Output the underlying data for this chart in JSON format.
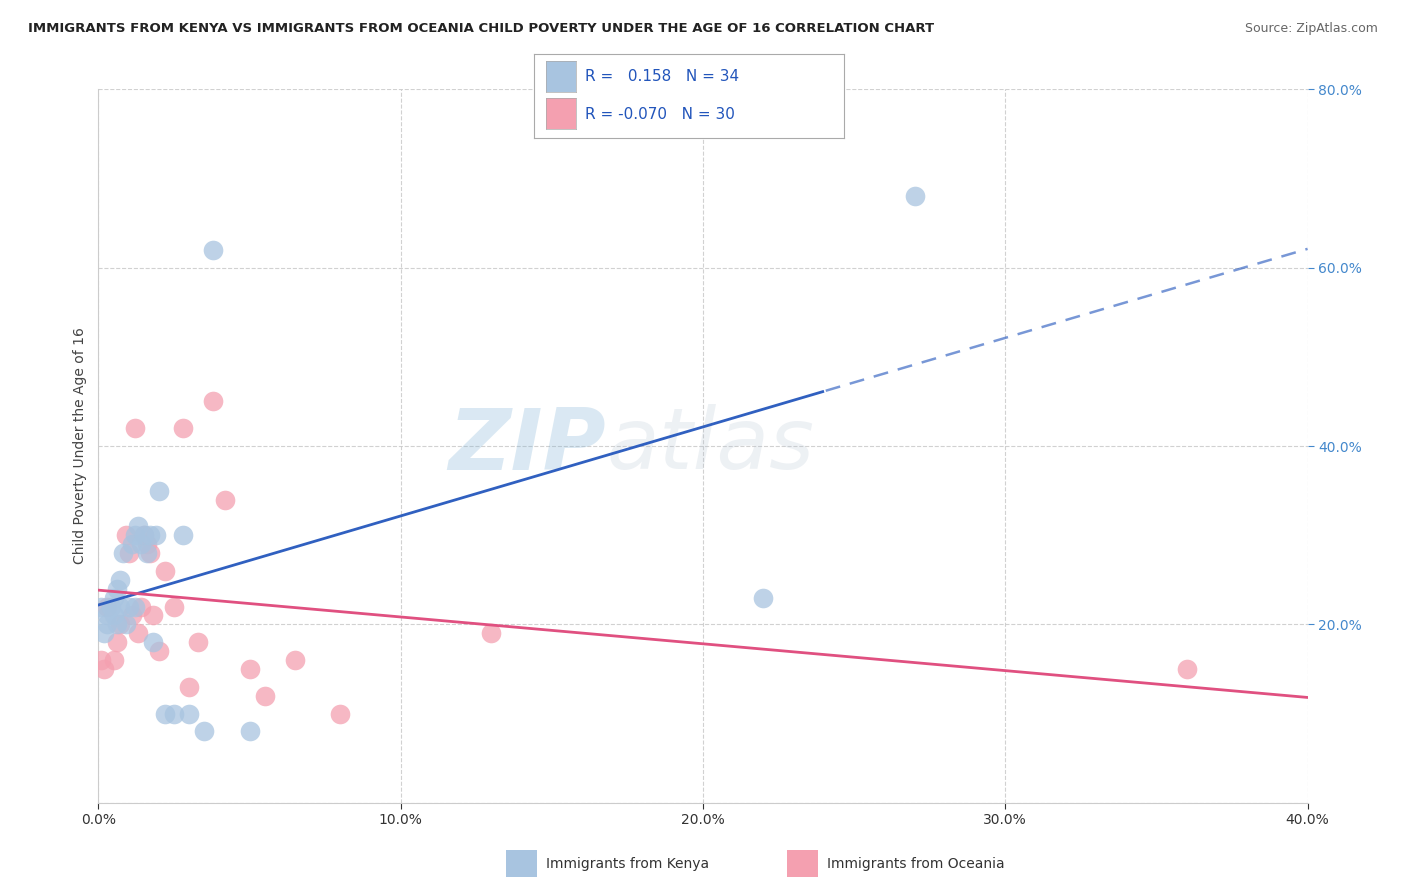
{
  "title": "IMMIGRANTS FROM KENYA VS IMMIGRANTS FROM OCEANIA CHILD POVERTY UNDER THE AGE OF 16 CORRELATION CHART",
  "source": "Source: ZipAtlas.com",
  "ylabel_left": "Child Poverty Under the Age of 16",
  "xlabel_label_kenya": "Immigrants from Kenya",
  "xlabel_label_oceania": "Immigrants from Oceania",
  "legend_kenya_R": "0.158",
  "legend_kenya_N": "34",
  "legend_oceania_R": "-0.070",
  "legend_oceania_N": "30",
  "kenya_color": "#a8c4e0",
  "oceania_color": "#f4a0b0",
  "kenya_line_color": "#3060c0",
  "oceania_line_color": "#e05080",
  "watermark_zip": "ZIP",
  "watermark_atlas": "atlas",
  "background_color": "#ffffff",
  "grid_color": "#cccccc",
  "kenya_x": [
    0.001,
    0.002,
    0.003,
    0.003,
    0.004,
    0.005,
    0.005,
    0.006,
    0.006,
    0.007,
    0.007,
    0.008,
    0.009,
    0.01,
    0.011,
    0.012,
    0.012,
    0.013,
    0.014,
    0.015,
    0.016,
    0.017,
    0.018,
    0.019,
    0.02,
    0.022,
    0.025,
    0.028,
    0.03,
    0.035,
    0.038,
    0.05,
    0.22,
    0.27
  ],
  "kenya_y": [
    0.22,
    0.19,
    0.21,
    0.2,
    0.22,
    0.23,
    0.21,
    0.24,
    0.2,
    0.25,
    0.22,
    0.28,
    0.2,
    0.22,
    0.29,
    0.3,
    0.22,
    0.31,
    0.29,
    0.3,
    0.28,
    0.3,
    0.18,
    0.3,
    0.35,
    0.1,
    0.1,
    0.3,
    0.1,
    0.08,
    0.62,
    0.08,
    0.23,
    0.68
  ],
  "oceania_x": [
    0.001,
    0.002,
    0.003,
    0.005,
    0.006,
    0.007,
    0.009,
    0.01,
    0.011,
    0.012,
    0.013,
    0.014,
    0.015,
    0.016,
    0.017,
    0.018,
    0.02,
    0.022,
    0.025,
    0.028,
    0.03,
    0.033,
    0.038,
    0.042,
    0.05,
    0.055,
    0.065,
    0.08,
    0.13,
    0.36
  ],
  "oceania_y": [
    0.16,
    0.15,
    0.22,
    0.16,
    0.18,
    0.2,
    0.3,
    0.28,
    0.21,
    0.42,
    0.19,
    0.22,
    0.3,
    0.29,
    0.28,
    0.21,
    0.17,
    0.26,
    0.22,
    0.42,
    0.13,
    0.18,
    0.45,
    0.34,
    0.15,
    0.12,
    0.16,
    0.1,
    0.19,
    0.15
  ],
  "xmin": 0.0,
  "xmax": 0.4,
  "ymin": 0.0,
  "ymax": 0.8,
  "xticks": [
    0.0,
    0.1,
    0.2,
    0.3,
    0.4
  ],
  "yticks_right": [
    0.2,
    0.4,
    0.6,
    0.8
  ]
}
